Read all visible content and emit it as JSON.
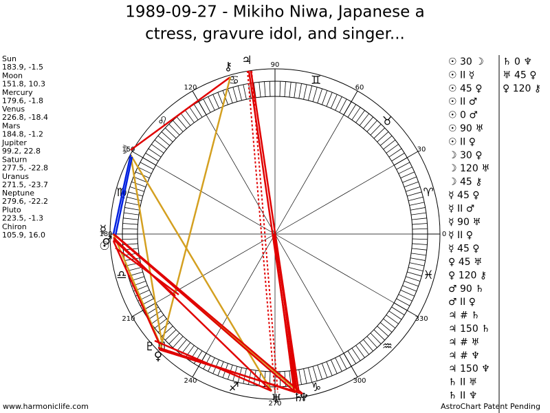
{
  "header": {
    "title_lines": [
      "1989-09-27 - Mikiho Niwa, Japanese a",
      "ctress, gravure idol, and singer..."
    ]
  },
  "planets": [
    {
      "name": "Sun",
      "glyph": "☉",
      "coords": "183.9, -1.5"
    },
    {
      "name": "Moon",
      "glyph": "☽",
      "coords": "151.8, 10.3"
    },
    {
      "name": "Mercury",
      "glyph": "☿",
      "coords": "179.6, -1.8"
    },
    {
      "name": "Venus",
      "glyph": "♀",
      "coords": "226.8, -18.4"
    },
    {
      "name": "Mars",
      "glyph": "♂",
      "coords": "184.8, -1.2"
    },
    {
      "name": "Jupiter",
      "glyph": "♃",
      "coords": "99.2, 22.8"
    },
    {
      "name": "Saturn",
      "glyph": "♄",
      "coords": "277.5, -22.8"
    },
    {
      "name": "Uranus",
      "glyph": "♅",
      "coords": "271.5, -23.7"
    },
    {
      "name": "Neptune",
      "glyph": "♆",
      "coords": "279.6, -22.2"
    },
    {
      "name": "Pluto",
      "glyph": "♇",
      "coords": "223.5, -1.3"
    },
    {
      "name": "Chiron",
      "glyph": "⚷",
      "coords": "105.9, 16.0"
    }
  ],
  "signs": [
    "♈",
    "♉",
    "♊",
    "♋",
    "♌",
    "♍",
    "♎",
    "♏",
    "♐",
    "♑",
    "♒",
    "♓"
  ],
  "degree_labels": [
    "0",
    "30",
    "60",
    "90",
    "120",
    "150",
    "180",
    "210",
    "240",
    "270",
    "300",
    "330"
  ],
  "aspects": [
    "☉ 30 ☽",
    "☉ II ☿",
    "☉ 45 ♀",
    "☉ II ♂",
    "☉ 0 ♂",
    "☉ 90 ♅",
    "☉ II ♀",
    "☽ 30 ♀",
    "☽ 120 ♅",
    "☽ 45 ⚷",
    "☿ 45 ♀",
    "☿ II ♂",
    "☿ 90 ♅",
    "☿ II ♀",
    "☿ 45 ♀",
    "♀ 45 ♅",
    "♀ 120 ⚷",
    "♂ 90 ♄",
    "♂ II ♀",
    "♃ # ♄",
    "♃ 150 ♄",
    "♃ # ♅",
    "♃ # ♆",
    "♃ 150 ♆",
    "♄ II ♅",
    "♄ II ♆"
  ],
  "aspects_col2": [
    "♄ 0 ♆",
    "♅ 45 ♀",
    "♀ 120 ⚷"
  ],
  "footer": {
    "left": "www.harmoniclife.com",
    "right": "AstroChart Patent Pending"
  }
}
